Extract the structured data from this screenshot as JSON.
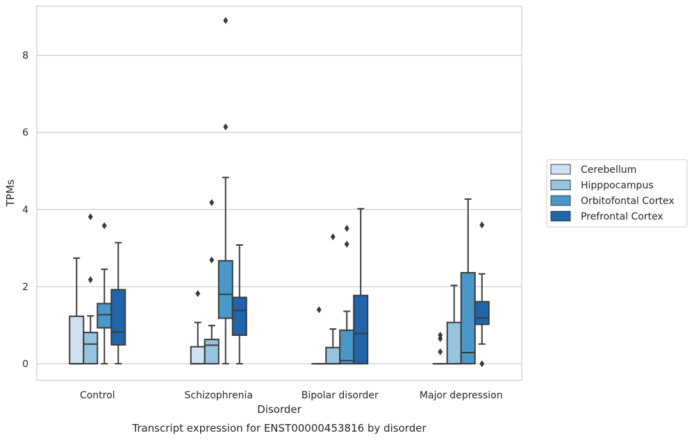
{
  "chart_data": {
    "type": "box",
    "title": "Transcript expression for ENST00000453816 by disorder",
    "xlabel": "Disorder",
    "ylabel": "TPMs",
    "categories": [
      "Control",
      "Schizophrenia",
      "Bipolar disorder",
      "Major depression"
    ],
    "ylim": [
      -0.43,
      9.27
    ],
    "yticks": [
      0,
      2,
      4,
      6,
      8
    ],
    "grid": "horizontal",
    "legend": {
      "position": "right"
    },
    "series": [
      {
        "name": "Cerebellum",
        "color": "#d0e1f2",
        "boxes": [
          {
            "q1": 0,
            "median": 0,
            "q3": 1.23,
            "whisker_low": 0,
            "whisker_high": 2.74,
            "outliers": []
          },
          {
            "q1": 0,
            "median": 0,
            "q3": 0.44,
            "whisker_low": 0,
            "whisker_high": 1.07,
            "outliers": [
              1.82
            ]
          },
          {
            "q1": 0,
            "median": 0,
            "q3": 0,
            "whisker_low": 0,
            "whisker_high": 0,
            "outliers": [
              1.4
            ]
          },
          {
            "q1": 0,
            "median": 0,
            "q3": 0,
            "whisker_low": 0,
            "whisker_high": 0,
            "outliers": [
              0.31,
              0.65,
              0.74
            ]
          }
        ]
      },
      {
        "name": "Hipppocampus",
        "color": "#94c4df",
        "boxes": [
          {
            "q1": 0,
            "median": 0.51,
            "q3": 0.81,
            "whisker_low": 0,
            "whisker_high": 1.24,
            "outliers": [
              2.18,
              3.81
            ]
          },
          {
            "q1": 0,
            "median": 0.48,
            "q3": 0.63,
            "whisker_low": 0,
            "whisker_high": 0.99,
            "outliers": [
              2.69,
              4.18
            ]
          },
          {
            "q1": 0,
            "median": 0,
            "q3": 0.42,
            "whisker_low": 0,
            "whisker_high": 0.9,
            "outliers": [
              3.29
            ]
          },
          {
            "q1": 0,
            "median": 0,
            "q3": 1.07,
            "whisker_low": 0,
            "whisker_high": 2.03,
            "outliers": []
          }
        ]
      },
      {
        "name": "Orbitofontal Cortex",
        "color": "#4a98c9",
        "boxes": [
          {
            "q1": 0.93,
            "median": 1.27,
            "q3": 1.56,
            "whisker_low": 0,
            "whisker_high": 2.45,
            "outliers": [
              3.58
            ]
          },
          {
            "q1": 1.18,
            "median": 1.8,
            "q3": 2.67,
            "whisker_low": 0,
            "whisker_high": 4.83,
            "outliers": [
              6.14,
              8.9
            ]
          },
          {
            "q1": 0,
            "median": 0.08,
            "q3": 0.87,
            "whisker_low": 0,
            "whisker_high": 1.36,
            "outliers": [
              3.1,
              3.51
            ]
          },
          {
            "q1": 0,
            "median": 0.29,
            "q3": 2.36,
            "whisker_low": 0,
            "whisker_high": 4.27,
            "outliers": []
          }
        ]
      },
      {
        "name": "Prefrontal Cortex",
        "color": "#2064ab",
        "boxes": [
          {
            "q1": 0.49,
            "median": 0.82,
            "q3": 1.92,
            "whisker_low": 0,
            "whisker_high": 3.14,
            "outliers": []
          },
          {
            "q1": 0.74,
            "median": 1.38,
            "q3": 1.72,
            "whisker_low": 0,
            "whisker_high": 3.08,
            "outliers": []
          },
          {
            "q1": 0,
            "median": 0.78,
            "q3": 1.77,
            "whisker_low": 0,
            "whisker_high": 4.02,
            "outliers": []
          },
          {
            "q1": 1.02,
            "median": 1.19,
            "q3": 1.61,
            "whisker_low": 0.51,
            "whisker_high": 2.33,
            "outliers": [
              0,
              3.6
            ]
          }
        ]
      }
    ]
  }
}
